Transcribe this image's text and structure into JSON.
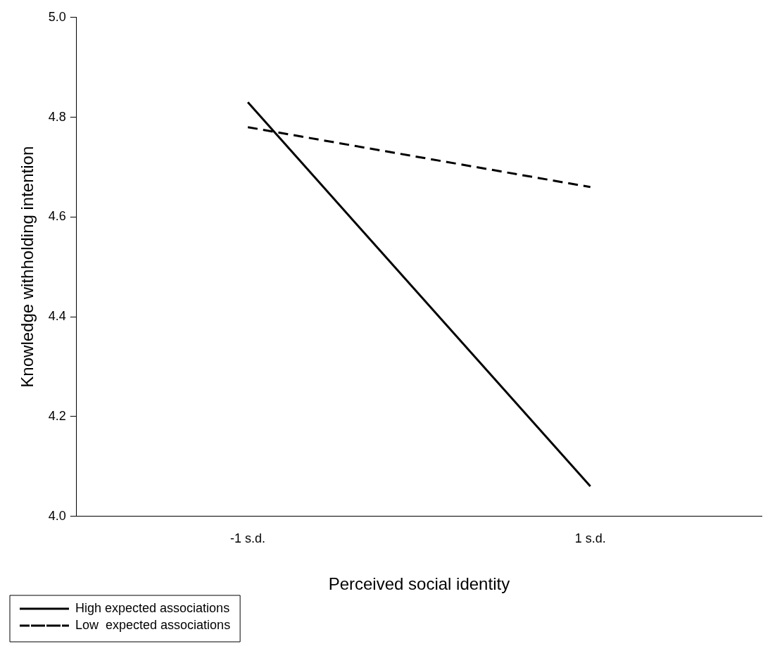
{
  "chart_data": {
    "type": "line",
    "xlabel": "Perceived social identity",
    "ylabel": "Knowledge withholding intention",
    "categories": [
      "-1 s.d.",
      "1 s.d."
    ],
    "series": [
      {
        "name": "High expected associations",
        "color": "#000000",
        "values": [
          4.83,
          4.06
        ],
        "line_style": "solid"
      },
      {
        "name": "Low  expected associations",
        "color": "#000000",
        "values": [
          4.78,
          4.66
        ],
        "line_style": "dashed"
      }
    ],
    "ylim": [
      4.0,
      5.0
    ],
    "yticks": [
      {
        "value": 4,
        "label": "4.0"
      },
      4.2,
      4.4,
      4.6,
      4.8,
      {
        "value": 5,
        "label": "5.0"
      }
    ],
    "grid": false,
    "legend": "bottom left",
    "marker": "none"
  }
}
